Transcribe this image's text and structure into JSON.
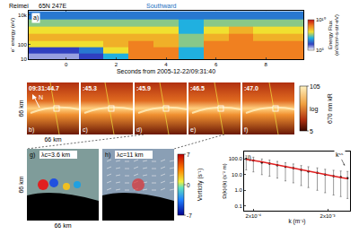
{
  "chart_data": [
    {
      "type": "heatmap",
      "annotations": [
        "a)",
        "Reimei",
        "65N 247E",
        "Southward"
      ],
      "x_label": "Seconds from 2005-12-22/09:31:40",
      "y_label": "e⁻ energy (eV)",
      "x": [
        -1,
        0,
        1,
        2,
        3,
        4,
        5,
        6,
        7,
        8,
        9
      ],
      "y": [
        15,
        40,
        100,
        300,
        1000,
        3000,
        10000
      ],
      "cells": [
        [
          5.5,
          5.5,
          6,
          7,
          9,
          9,
          7,
          9,
          9,
          9,
          9
        ],
        [
          6,
          6,
          6.5,
          8,
          9,
          9,
          7,
          9,
          9,
          9,
          9
        ],
        [
          8,
          8,
          8,
          8.5,
          9,
          8.5,
          7.5,
          9,
          9,
          9,
          9
        ],
        [
          8.5,
          8.5,
          8.5,
          8.5,
          8.5,
          8.5,
          7.5,
          8.5,
          9,
          8.5,
          8.5
        ],
        [
          8,
          8,
          8,
          8,
          8,
          8,
          7,
          8,
          8.5,
          8,
          8
        ],
        [
          7.5,
          7.5,
          7.5,
          7.5,
          7.5,
          7.5,
          7,
          7.5,
          7.5,
          7.5,
          7.5
        ],
        [
          6.5,
          6.5,
          6.5,
          6.5,
          6.5,
          6.5,
          6.5,
          6.5,
          6.5,
          6.5,
          6.5
        ]
      ],
      "xlim": [
        -1.5,
        9.5
      ],
      "xticks": [
        0,
        2,
        4,
        6,
        8
      ],
      "ylim": [
        10,
        20000
      ],
      "yticks": [
        10,
        100,
        {
          "value": 10000,
          "label": "10k"
        }
      ],
      "log": "y",
      "colorbar": {
        "title": "Energy Flux (eV/cm²-s-str-eV)",
        "range": [
          5,
          10
        ],
        "ticks": [
          {
            "value": 5,
            "label": "10⁵"
          },
          {
            "value": 10,
            "label": "10¹⁰"
          }
        ]
      }
    },
    {
      "type": "line",
      "annotations": [
        "i)",
        "kˢˢ"
      ],
      "x_label": "k (m⁻¹)",
      "y_label": "Ω(k)/(k) (s⁻² m)",
      "log": true,
      "x": [
        0.00016,
        0.0002,
        0.00026,
        0.00033,
        0.00042,
        0.00054,
        0.00069,
        0.00088,
        0.0011,
        0.00145,
        0.00185,
        0.0024,
        0.003,
        0.0037
      ],
      "xlim": [
        0.00015,
        0.004
      ],
      "xticks": [
        {
          "value": 0.0002,
          "label": "2x10⁻⁴"
        },
        {
          "value": 0.002,
          "label": "2x10⁻³"
        }
      ],
      "ylim": [
        0.05,
        300
      ],
      "yticks": [
        0.1,
        {
          "value": 1,
          "label": "1.0"
        },
        {
          "value": 10,
          "label": "10.0"
        },
        {
          "value": 100,
          "label": "100.0"
        }
      ],
      "series": [
        {
          "type": "scatter",
          "color": "#000000",
          "marker": "circle",
          "values": [
            100,
            80,
            60,
            50,
            40,
            32,
            26,
            20,
            16,
            13,
            10,
            8,
            7,
            6
          ],
          "error_plus": [
            60,
            50,
            40,
            35,
            30,
            25,
            22,
            18,
            16,
            14,
            12,
            11,
            10,
            10
          ],
          "error_minus": [
            80,
            65,
            50,
            42,
            34,
            28,
            23,
            18,
            14.5,
            12,
            9.3,
            7.5,
            6.6,
            5.7
          ]
        },
        {
          "type": "line",
          "color": "#e02020",
          "line_style": "solid",
          "values": [
            95,
            82,
            66,
            53,
            42,
            33,
            26,
            20,
            16,
            12.5,
            10,
            8,
            6.5,
            5.5
          ]
        }
      ]
    }
  ],
  "images": {
    "scale_label": "66 km",
    "north": "N",
    "frames": [
      {
        "label": "b)",
        "time": "09:31:44.7"
      },
      {
        "label": "c)",
        "time": ":45.3"
      },
      {
        "label": "d)",
        "time": ":45.9"
      },
      {
        "label": "e)",
        "time": ":46.5"
      },
      {
        "label": "f)",
        "time": ":47.0"
      }
    ],
    "colorbar": {
      "title": "670 nm kR",
      "scale_label": "log",
      "range": [
        5,
        105
      ],
      "ticks": [
        5,
        105
      ]
    }
  },
  "vorticity": {
    "panels": [
      {
        "label": "g)",
        "text": "λc=3.6 km"
      },
      {
        "label": "h)",
        "text": "λc=11 km"
      }
    ],
    "colorbar": {
      "title": "Vorticity (s⁻¹)",
      "range": [
        -7,
        7
      ],
      "ticks": [
        -7,
        0,
        7
      ]
    }
  }
}
